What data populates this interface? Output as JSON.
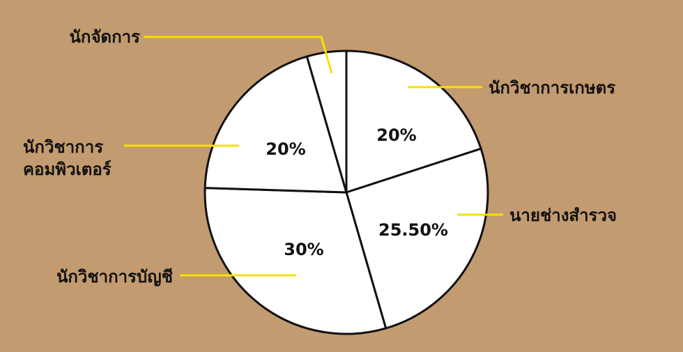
{
  "chart_data": {
    "type": "pie",
    "slices": [
      {
        "name": "นักวิชาการเกษตร",
        "value": 20,
        "label": "20%"
      },
      {
        "name": "นายช่างสำรวจ",
        "value": 25.5,
        "label": "25.50%"
      },
      {
        "name": "นักวิชาการบัญชี",
        "value": 30,
        "label": "30%"
      },
      {
        "name": "นักวิชาการคอมพิวเตอร์",
        "value": 20,
        "label": "20%"
      },
      {
        "name": "นักจัดการ",
        "value": 4.5,
        "label": ""
      }
    ],
    "category_labels": {
      "agri": "นักวิชาการเกษตร",
      "survey": "นายช่างสำรวจ",
      "accounting": "นักวิชาการบัญชี",
      "computer_line1": "นักวิชาการ",
      "computer_line2": "คอมพิวเตอร์",
      "manager": "นักจัดการ"
    },
    "colors": {
      "background": "#c39b70",
      "slice_fill": "#ffffff",
      "slice_stroke": "#111111",
      "leader_line": "#f7e000"
    }
  }
}
